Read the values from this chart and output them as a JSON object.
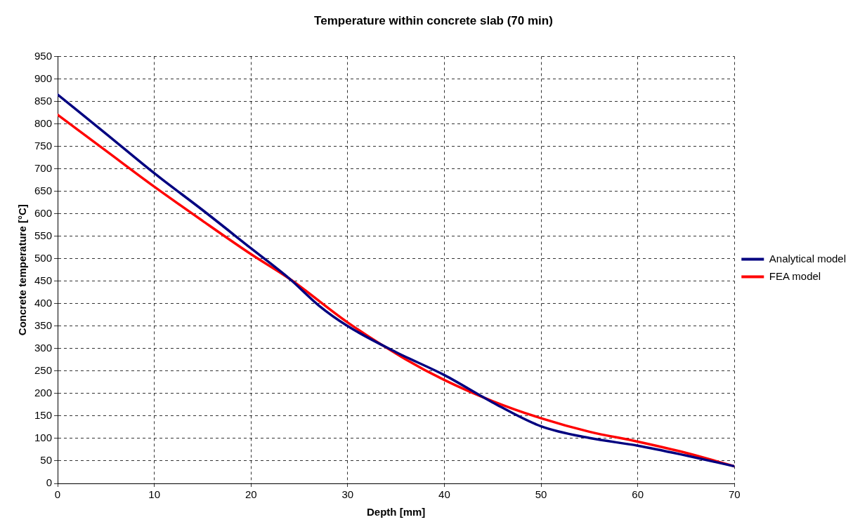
{
  "chart_data": {
    "type": "line",
    "title": "Temperature within concrete slab (70 min)",
    "xlabel": "Depth [mm]",
    "ylabel": "Concrete temperature [°C]",
    "series": [
      {
        "name": "Analytical model",
        "color": "#000080",
        "x": [
          0,
          5,
          10,
          15,
          20,
          24,
          27,
          30,
          35,
          40,
          45,
          50,
          55,
          60,
          65,
          70
        ],
        "values": [
          865,
          778,
          690,
          608,
          523,
          455,
          396,
          350,
          292,
          241,
          180,
          127,
          101,
          84,
          62,
          38
        ]
      },
      {
        "name": "FEA model",
        "color": "#ff0000",
        "x": [
          0,
          5,
          10,
          15,
          20,
          24,
          30,
          36,
          40,
          45,
          50,
          55,
          60,
          65,
          70
        ],
        "values": [
          820,
          740,
          660,
          584,
          510,
          455,
          358,
          276,
          230,
          183,
          145,
          115,
          93,
          68,
          38
        ]
      }
    ],
    "xlim": [
      0,
      70
    ],
    "xticks": [
      0,
      10,
      20,
      30,
      40,
      50,
      60,
      70
    ],
    "ylim": [
      0,
      950
    ],
    "yticks": [
      0,
      50,
      100,
      150,
      200,
      250,
      300,
      350,
      400,
      450,
      500,
      550,
      600,
      650,
      700,
      750,
      800,
      850,
      900,
      950
    ],
    "grid": true,
    "legend": "right",
    "marker": "none",
    "line_style": "solid"
  }
}
